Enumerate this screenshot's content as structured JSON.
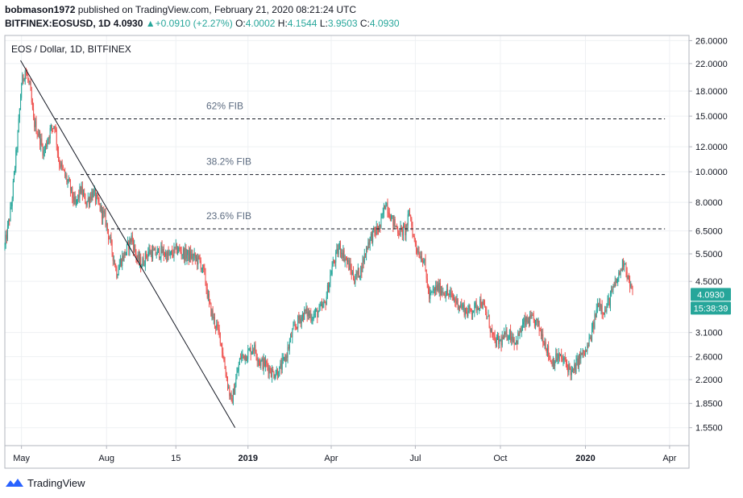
{
  "header": {
    "author": "bobmason1972",
    "published_text": "published on TradingView.com, February 21, 2020 08:21:24 UTC",
    "symbol": "BITFINEX:EOSUSD, 1D",
    "last": "4.0930",
    "change": "+0.0910 (+2.27%)",
    "o_label": "O:",
    "o_value": "4.0002",
    "h_label": "H:",
    "h_value": "4.1544",
    "l_label": "L:",
    "l_value": "3.9503",
    "c_label": "C:",
    "c_value": "4.0930"
  },
  "footer": {
    "brand": "TradingView"
  },
  "colors": {
    "up": "#26a69a",
    "down": "#ef5350",
    "badge": "#26a69a"
  },
  "chart_data": {
    "type": "candlestick",
    "title": "EOS / Dollar, 1D, BITFINEX",
    "scale": "log",
    "ylim": [
      1.36,
      27.0
    ],
    "xlim": [
      "2018-04-13",
      "2020-04-22"
    ],
    "y_ticks": [
      "26.0000",
      "22.0000",
      "18.0000",
      "15.0000",
      "12.0000",
      "10.0000",
      "8.0000",
      "6.5000",
      "5.5000",
      "4.5000",
      "3.1000",
      "2.6000",
      "2.2000",
      "1.8500",
      "1.5500"
    ],
    "x_ticks": [
      {
        "date": "2018-05-01",
        "label": "May"
      },
      {
        "date": "2018-08-01",
        "label": "Aug"
      },
      {
        "date": "2018-10-15",
        "label": "15"
      },
      {
        "date": "2019-01-01",
        "label": "2019"
      },
      {
        "date": "2019-04-01",
        "label": "Apr"
      },
      {
        "date": "2019-07-01",
        "label": "Jul"
      },
      {
        "date": "2019-10-01",
        "label": "Oct"
      },
      {
        "date": "2020-01-01",
        "label": "2020"
      },
      {
        "date": "2020-04-01",
        "label": "Apr"
      }
    ],
    "price_path": [
      [
        "2018-04-13",
        5.8
      ],
      [
        "2018-04-20",
        7.8
      ],
      [
        "2018-04-27",
        13.0
      ],
      [
        "2018-05-01",
        19.0
      ],
      [
        "2018-05-05",
        21.0
      ],
      [
        "2018-05-10",
        18.5
      ],
      [
        "2018-05-14",
        14.5
      ],
      [
        "2018-05-20",
        13.0
      ],
      [
        "2018-05-25",
        11.5
      ],
      [
        "2018-06-01",
        13.5
      ],
      [
        "2018-06-06",
        14.2
      ],
      [
        "2018-06-10",
        11.0
      ],
      [
        "2018-06-15",
        10.0
      ],
      [
        "2018-06-22",
        9.0
      ],
      [
        "2018-06-28",
        7.8
      ],
      [
        "2018-07-04",
        8.8
      ],
      [
        "2018-07-10",
        8.0
      ],
      [
        "2018-07-17",
        8.6
      ],
      [
        "2018-07-24",
        7.8
      ],
      [
        "2018-07-31",
        7.0
      ],
      [
        "2018-08-06",
        5.8
      ],
      [
        "2018-08-12",
        4.8
      ],
      [
        "2018-08-16",
        5.2
      ],
      [
        "2018-08-22",
        5.6
      ],
      [
        "2018-08-28",
        6.2
      ],
      [
        "2018-09-03",
        5.3
      ],
      [
        "2018-09-08",
        5.1
      ],
      [
        "2018-09-15",
        5.6
      ],
      [
        "2018-09-22",
        5.5
      ],
      [
        "2018-09-29",
        5.6
      ],
      [
        "2018-10-08",
        5.4
      ],
      [
        "2018-10-16",
        5.7
      ],
      [
        "2018-10-24",
        5.5
      ],
      [
        "2018-11-01",
        5.4
      ],
      [
        "2018-11-10",
        5.2
      ],
      [
        "2018-11-15",
        4.7
      ],
      [
        "2018-11-20",
        3.8
      ],
      [
        "2018-11-25",
        3.4
      ],
      [
        "2018-12-02",
        3.0
      ],
      [
        "2018-12-07",
        2.4
      ],
      [
        "2018-12-14",
        1.85
      ],
      [
        "2018-12-19",
        2.2
      ],
      [
        "2018-12-24",
        2.6
      ],
      [
        "2018-12-31",
        2.65
      ],
      [
        "2019-01-07",
        2.8
      ],
      [
        "2019-01-14",
        2.5
      ],
      [
        "2019-01-21",
        2.45
      ],
      [
        "2019-01-28",
        2.3
      ],
      [
        "2019-02-04",
        2.35
      ],
      [
        "2019-02-11",
        2.6
      ],
      [
        "2019-02-18",
        3.1
      ],
      [
        "2019-02-25",
        3.4
      ],
      [
        "2019-03-04",
        3.6
      ],
      [
        "2019-03-11",
        3.5
      ],
      [
        "2019-03-18",
        3.6
      ],
      [
        "2019-03-25",
        3.8
      ],
      [
        "2019-04-02",
        5.0
      ],
      [
        "2019-04-10",
        5.8
      ],
      [
        "2019-04-18",
        5.2
      ],
      [
        "2019-04-26",
        4.6
      ],
      [
        "2019-05-03",
        4.9
      ],
      [
        "2019-05-11",
        6.0
      ],
      [
        "2019-05-17",
        6.4
      ],
      [
        "2019-05-24",
        6.7
      ],
      [
        "2019-05-30",
        8.1
      ],
      [
        "2019-06-06",
        7.0
      ],
      [
        "2019-06-13",
        6.5
      ],
      [
        "2019-06-20",
        6.5
      ],
      [
        "2019-06-25",
        7.4
      ],
      [
        "2019-06-29",
        6.2
      ],
      [
        "2019-07-04",
        5.6
      ],
      [
        "2019-07-10",
        5.3
      ],
      [
        "2019-07-16",
        4.0
      ],
      [
        "2019-07-24",
        4.3
      ],
      [
        "2019-08-01",
        4.2
      ],
      [
        "2019-08-10",
        4.0
      ],
      [
        "2019-08-18",
        3.8
      ],
      [
        "2019-08-26",
        3.6
      ],
      [
        "2019-09-03",
        3.7
      ],
      [
        "2019-09-10",
        3.9
      ],
      [
        "2019-09-18",
        3.4
      ],
      [
        "2019-09-24",
        2.9
      ],
      [
        "2019-10-01",
        2.9
      ],
      [
        "2019-10-10",
        3.1
      ],
      [
        "2019-10-18",
        2.9
      ],
      [
        "2019-10-26",
        3.3
      ],
      [
        "2019-11-03",
        3.4
      ],
      [
        "2019-11-10",
        3.3
      ],
      [
        "2019-11-18",
        2.9
      ],
      [
        "2019-11-25",
        2.5
      ],
      [
        "2019-12-03",
        2.6
      ],
      [
        "2019-12-10",
        2.5
      ],
      [
        "2019-12-18",
        2.3
      ],
      [
        "2019-12-26",
        2.6
      ],
      [
        "2020-01-02",
        2.7
      ],
      [
        "2020-01-08",
        3.1
      ],
      [
        "2020-01-15",
        3.9
      ],
      [
        "2020-01-22",
        3.6
      ],
      [
        "2020-01-29",
        4.1
      ],
      [
        "2020-02-05",
        4.6
      ],
      [
        "2020-02-12",
        5.3
      ],
      [
        "2020-02-16",
        4.6
      ],
      [
        "2020-02-21",
        4.09
      ]
    ],
    "trendline": {
      "from": [
        "2018-04-30",
        22.5
      ],
      "to": [
        "2018-12-18",
        1.55
      ]
    },
    "fib_levels": [
      {
        "label": "62% FIB",
        "value": 14.7,
        "from": "2018-06-06",
        "to": "2020-03-27"
      },
      {
        "label": "38.2% FIB",
        "value": 9.8,
        "from": "2018-07-04",
        "to": "2020-03-27"
      },
      {
        "label": "23.6% FIB",
        "value": 6.6,
        "from": "2018-08-06",
        "to": "2020-03-27"
      }
    ],
    "last_price": {
      "value": 4.093,
      "label": "4.0930",
      "countdown": "15:38:39"
    }
  }
}
